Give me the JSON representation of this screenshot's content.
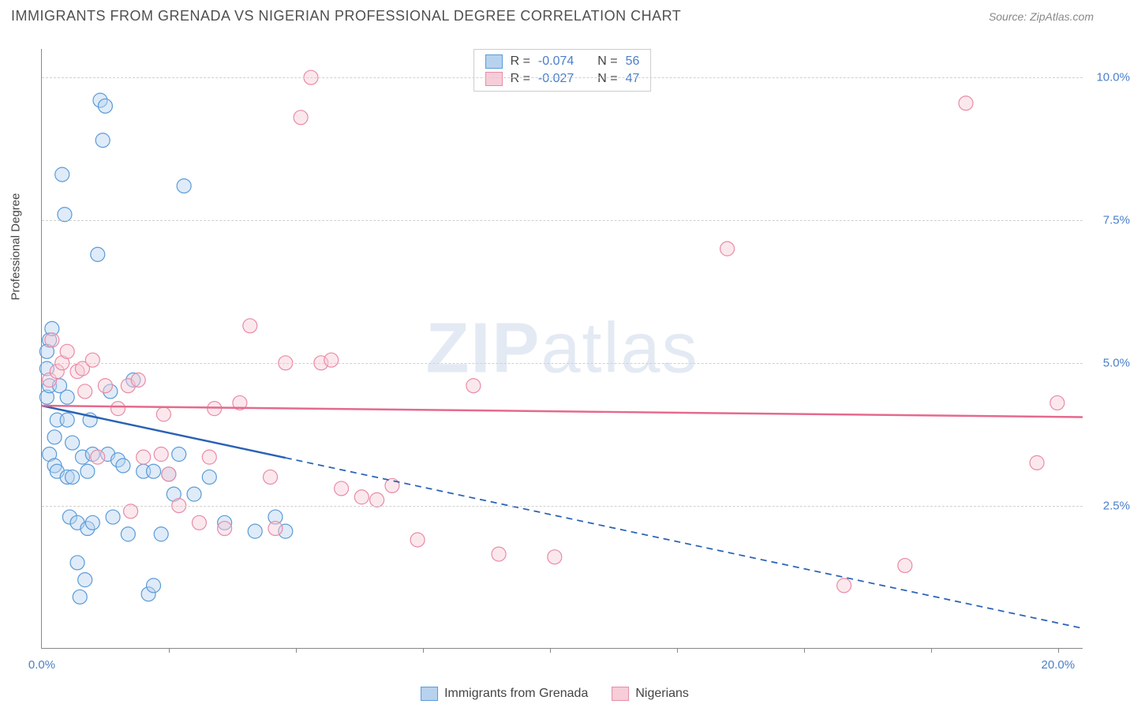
{
  "header": {
    "title": "IMMIGRANTS FROM GRENADA VS NIGERIAN PROFESSIONAL DEGREE CORRELATION CHART",
    "source": "Source: ZipAtlas.com"
  },
  "watermark": {
    "zip": "ZIP",
    "atlas": "atlas"
  },
  "axes": {
    "y_title": "Professional Degree",
    "y_ticks": [
      2.5,
      5.0,
      7.5,
      10.0
    ],
    "y_tick_labels": [
      "2.5%",
      "5.0%",
      "7.5%",
      "10.0%"
    ],
    "ylim": [
      0,
      10.5
    ],
    "x_ticks": [
      2.5,
      5.0,
      7.5,
      10.0,
      12.5,
      15.0,
      17.5,
      20.0
    ],
    "x_tick_labels_shown": {
      "0": "0.0%",
      "20": "20.0%"
    },
    "xlim": [
      0,
      20.5
    ],
    "grid_color": "#d0d0d0",
    "axis_color": "#888888",
    "tick_label_color": "#4a7fc9",
    "tick_label_fontsize": 15
  },
  "stats_legend": {
    "rows": [
      {
        "swatch_fill": "#b7d2ef",
        "swatch_stroke": "#5a9bd8",
        "r_label": "R =",
        "r": "-0.074",
        "n_label": "N =",
        "n": "56"
      },
      {
        "swatch_fill": "#f6cdd8",
        "swatch_stroke": "#e98ba6",
        "r_label": "R =",
        "r": "-0.027",
        "n_label": "N =",
        "n": "47"
      }
    ]
  },
  "series_legend": {
    "items": [
      {
        "swatch_fill": "#b7d2ef",
        "swatch_stroke": "#5a9bd8",
        "label": "Immigrants from Grenada"
      },
      {
        "swatch_fill": "#f6cdd8",
        "swatch_stroke": "#e98ba6",
        "label": "Nigerians"
      }
    ]
  },
  "chart": {
    "type": "scatter",
    "marker_radius": 9,
    "marker_stroke_width": 1.2,
    "marker_fill_opacity": 0.45,
    "background_color": "#ffffff",
    "series": [
      {
        "name": "Immigrants from Grenada",
        "color_fill": "#b7d2ef",
        "color_stroke": "#5a9bd8",
        "points": [
          [
            0.1,
            4.4
          ],
          [
            0.1,
            4.9
          ],
          [
            0.15,
            3.4
          ],
          [
            0.15,
            4.6
          ],
          [
            0.15,
            5.4
          ],
          [
            0.1,
            5.2
          ],
          [
            0.2,
            5.6
          ],
          [
            0.25,
            3.2
          ],
          [
            0.25,
            3.7
          ],
          [
            0.3,
            3.1
          ],
          [
            0.3,
            4.0
          ],
          [
            0.35,
            4.6
          ],
          [
            0.4,
            8.3
          ],
          [
            0.45,
            7.6
          ],
          [
            0.5,
            3.0
          ],
          [
            0.5,
            4.0
          ],
          [
            0.5,
            4.4
          ],
          [
            0.55,
            2.3
          ],
          [
            0.6,
            3.0
          ],
          [
            0.6,
            3.6
          ],
          [
            0.7,
            1.5
          ],
          [
            0.7,
            2.2
          ],
          [
            0.75,
            0.9
          ],
          [
            0.8,
            3.35
          ],
          [
            0.85,
            1.2
          ],
          [
            0.9,
            2.1
          ],
          [
            0.9,
            3.1
          ],
          [
            0.95,
            4.0
          ],
          [
            1.0,
            2.2
          ],
          [
            1.0,
            3.4
          ],
          [
            1.1,
            6.9
          ],
          [
            1.15,
            9.6
          ],
          [
            1.2,
            8.9
          ],
          [
            1.25,
            9.5
          ],
          [
            1.3,
            3.4
          ],
          [
            1.35,
            4.5
          ],
          [
            1.4,
            2.3
          ],
          [
            1.5,
            3.3
          ],
          [
            1.6,
            3.2
          ],
          [
            1.7,
            2.0
          ],
          [
            1.8,
            4.7
          ],
          [
            2.0,
            3.1
          ],
          [
            2.1,
            0.95
          ],
          [
            2.2,
            1.1
          ],
          [
            2.2,
            3.1
          ],
          [
            2.35,
            2.0
          ],
          [
            2.5,
            3.05
          ],
          [
            2.6,
            2.7
          ],
          [
            2.7,
            3.4
          ],
          [
            2.8,
            8.1
          ],
          [
            3.0,
            2.7
          ],
          [
            3.3,
            3.0
          ],
          [
            3.6,
            2.2
          ],
          [
            4.2,
            2.05
          ],
          [
            4.6,
            2.3
          ],
          [
            4.8,
            2.05
          ]
        ],
        "trend": {
          "y_at_x0": 4.25,
          "y_at_xmax": 0.35,
          "solid_until_x": 4.8,
          "color": "#2a62b5",
          "width": 2.5
        }
      },
      {
        "name": "Nigerians",
        "color_fill": "#f6cdd8",
        "color_stroke": "#e98ba6",
        "points": [
          [
            0.15,
            4.7
          ],
          [
            0.2,
            5.4
          ],
          [
            0.3,
            4.85
          ],
          [
            0.4,
            5.0
          ],
          [
            0.5,
            5.2
          ],
          [
            0.7,
            4.85
          ],
          [
            0.8,
            4.9
          ],
          [
            0.85,
            4.5
          ],
          [
            1.0,
            5.05
          ],
          [
            1.1,
            3.35
          ],
          [
            1.25,
            4.6
          ],
          [
            1.5,
            4.2
          ],
          [
            1.7,
            4.6
          ],
          [
            1.75,
            2.4
          ],
          [
            1.9,
            4.7
          ],
          [
            2.0,
            3.35
          ],
          [
            2.35,
            3.4
          ],
          [
            2.4,
            4.1
          ],
          [
            2.5,
            3.05
          ],
          [
            2.7,
            2.5
          ],
          [
            3.1,
            2.2
          ],
          [
            3.3,
            3.35
          ],
          [
            3.4,
            4.2
          ],
          [
            3.6,
            2.1
          ],
          [
            3.9,
            4.3
          ],
          [
            4.1,
            5.65
          ],
          [
            4.5,
            3.0
          ],
          [
            4.6,
            2.1
          ],
          [
            4.8,
            5.0
          ],
          [
            5.1,
            9.3
          ],
          [
            5.3,
            10.0
          ],
          [
            5.5,
            5.0
          ],
          [
            5.7,
            5.05
          ],
          [
            5.9,
            2.8
          ],
          [
            6.3,
            2.65
          ],
          [
            6.6,
            2.6
          ],
          [
            6.9,
            2.85
          ],
          [
            7.4,
            1.9
          ],
          [
            8.5,
            4.6
          ],
          [
            9.0,
            1.65
          ],
          [
            10.1,
            1.6
          ],
          [
            13.5,
            7.0
          ],
          [
            15.8,
            1.1
          ],
          [
            17.0,
            1.45
          ],
          [
            18.2,
            9.55
          ],
          [
            19.6,
            3.25
          ],
          [
            20.0,
            4.3
          ]
        ],
        "trend": {
          "y_at_x0": 4.25,
          "y_at_xmax": 4.05,
          "solid_until_x": 20.5,
          "color": "#e56a8d",
          "width": 2.5
        }
      }
    ]
  }
}
